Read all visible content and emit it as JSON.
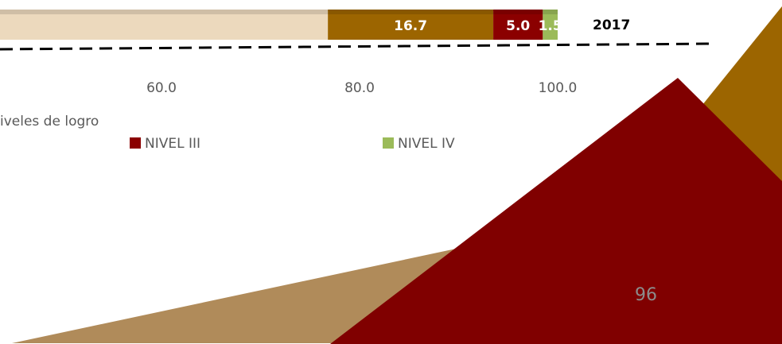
{
  "chart_data": {
    "type": "bar",
    "orientation": "horizontal",
    "stacked": true,
    "categories": [
      "2017"
    ],
    "series": [
      {
        "color": "#ecd9bd",
        "values": [
          76.8
        ]
      },
      {
        "color": "#9c6500",
        "values": [
          16.7
        ],
        "value_labels": [
          "16.7"
        ]
      },
      {
        "name": "NIVEL III",
        "color": "#8b0000",
        "values": [
          5.0
        ],
        "value_labels": [
          "5.0"
        ]
      },
      {
        "name": "NIVEL IV",
        "color": "#9bbb59",
        "values": [
          1.5
        ],
        "value_labels": [
          "1.5"
        ]
      }
    ],
    "xlim": [
      0,
      100
    ],
    "xticks": [
      {
        "value": 60,
        "label": "60.0"
      },
      {
        "value": 80,
        "label": "80.0"
      },
      {
        "value": 100,
        "label": "100.0"
      }
    ],
    "legend_title": "iveles de logro"
  },
  "page_number": "96"
}
